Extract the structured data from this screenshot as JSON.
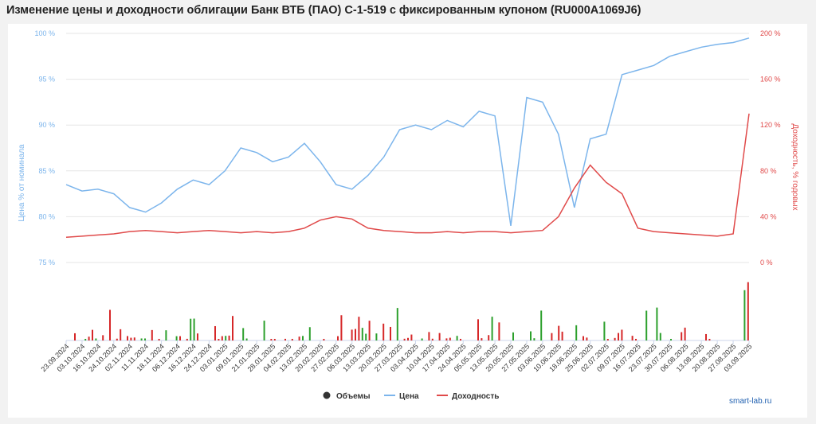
{
  "title": "Изменение цены и доходности облигации Банк ВТБ (ПАО) С-1-519 с фиксированным купоном (RU000A1069J6)",
  "credit": "smart-lab.ru",
  "legend": [
    {
      "label": "Объемы",
      "color": "#333333",
      "shape": "circle"
    },
    {
      "label": "Цена",
      "color": "#7cb5ec",
      "shape": "line"
    },
    {
      "label": "Доходность",
      "color": "#e04a4a",
      "shape": "line"
    }
  ],
  "chart_data": {
    "type": "line",
    "title": "Изменение цены и доходности облигации Банк ВТБ (ПАО) С-1-519 с фиксированным купоном (RU000A1069J6)",
    "x_labels": [
      "23.09.2024",
      "03.10.2024",
      "16.10.2024",
      "24.10.2024",
      "02.11.2024",
      "11.11.2024",
      "18.11.2024",
      "06.12.2024",
      "16.12.2024",
      "24.12.2024",
      "03.01.2025",
      "09.01.2025",
      "21.01.2025",
      "28.01.2025",
      "04.02.2025",
      "13.02.2025",
      "20.02.2025",
      "27.02.2025",
      "06.03.2025",
      "13.03.2025",
      "20.03.2025",
      "27.03.2025",
      "03.04.2025",
      "10.04.2025",
      "17.04.2025",
      "24.04.2025",
      "05.05.2025",
      "13.05.2025",
      "20.05.2025",
      "27.05.2025",
      "03.06.2025",
      "10.06.2025",
      "18.06.2025",
      "25.06.2025",
      "02.07.2025",
      "09.07.2025",
      "16.07.2025",
      "23.07.2025",
      "30.07.2025",
      "06.08.2025",
      "13.08.2025",
      "20.08.2025",
      "27.08.2025",
      "03.09.2025"
    ],
    "y_left": {
      "label": "Цена % от номинала",
      "ticks": [
        "75 %",
        "80 %",
        "85 %",
        "90 %",
        "95 %",
        "100 %"
      ],
      "min": 75,
      "max": 100
    },
    "y_right": {
      "label": "Доходность, % годовых",
      "ticks": [
        "0 %",
        "40 %",
        "80 %",
        "120 %",
        "160 %",
        "200 %"
      ],
      "min": 0,
      "max": 200
    },
    "series": [
      {
        "name": "Цена",
        "color": "#7cb5ec",
        "axis": "left",
        "values": [
          83.5,
          82.8,
          83.0,
          82.5,
          81.0,
          80.5,
          81.5,
          83.0,
          84.0,
          83.5,
          85.0,
          87.5,
          87.0,
          86.0,
          86.5,
          88.0,
          86.0,
          83.5,
          83.0,
          84.5,
          86.5,
          89.5,
          90.0,
          89.5,
          90.5,
          89.8,
          91.5,
          91.0,
          79.0,
          93.0,
          92.5,
          89.0,
          81.0,
          88.5,
          89.0,
          95.5,
          96.0,
          96.5,
          97.5,
          98.0,
          98.5,
          98.8,
          99.0,
          99.5
        ]
      },
      {
        "name": "Доходность",
        "color": "#e04a4a",
        "axis": "right",
        "values": [
          22,
          23,
          24,
          25,
          27,
          28,
          27,
          26,
          27,
          28,
          27,
          26,
          27,
          26,
          27,
          30,
          37,
          40,
          38,
          30,
          28,
          27,
          26,
          26,
          27,
          26,
          27,
          27,
          26,
          27,
          28,
          40,
          65,
          85,
          70,
          60,
          30,
          27,
          26,
          25,
          24,
          23,
          25,
          130
        ]
      }
    ],
    "volume_bars": {
      "colors": {
        "up": "#2ca02c",
        "down": "#d62728"
      }
    }
  }
}
